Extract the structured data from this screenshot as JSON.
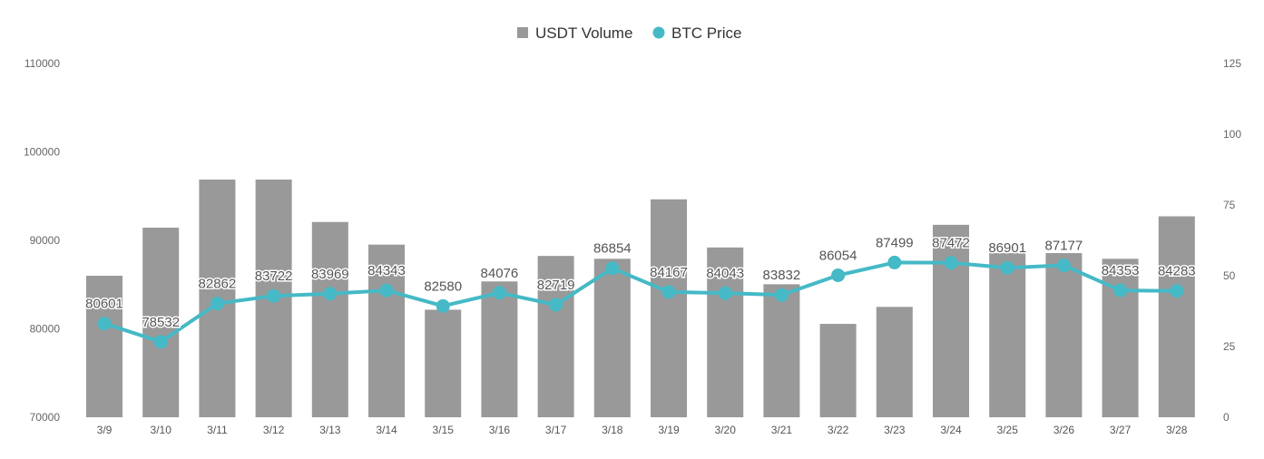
{
  "chart_data": {
    "type": "bar+line",
    "categories": [
      "3/9",
      "3/10",
      "3/11",
      "3/12",
      "3/13",
      "3/14",
      "3/15",
      "3/16",
      "3/17",
      "3/18",
      "3/19",
      "3/20",
      "3/21",
      "3/22",
      "3/23",
      "3/24",
      "3/25",
      "3/26",
      "3/27",
      "3/28"
    ],
    "series": [
      {
        "name": "USDT Volume",
        "type": "bar",
        "axis": "right",
        "color": "#999999",
        "values": [
          50,
          67,
          84,
          84,
          69,
          61,
          38,
          48,
          57,
          56,
          77,
          60,
          47,
          33,
          39,
          68,
          58,
          58,
          56,
          71
        ]
      },
      {
        "name": "BTC Price",
        "type": "line",
        "axis": "left",
        "color": "#45B9C6",
        "values": [
          80601,
          78532,
          82862,
          83722,
          83969,
          84343,
          82580,
          84076,
          82719,
          86854,
          84167,
          84043,
          83832,
          86054,
          87499,
          87472,
          86901,
          87177,
          84353,
          84283
        ],
        "labels": [
          "80601",
          "78532",
          "82862",
          "83722",
          "83969",
          "84343",
          "82580",
          "84076",
          "82719",
          "86854",
          "84167",
          "84043",
          "83832",
          "86054",
          "87499",
          "87472",
          "86901",
          "87177",
          "84353",
          "84283"
        ]
      }
    ],
    "left_axis": {
      "min": 70000,
      "max": 110000,
      "ticks": [
        "70000",
        "80000",
        "90000",
        "100000",
        "110000"
      ]
    },
    "right_axis": {
      "min": 0,
      "max": 125,
      "ticks": [
        "0",
        "25",
        "50",
        "75",
        "100",
        "125"
      ]
    },
    "legend": [
      {
        "label": "USDT Volume",
        "marker": "square",
        "color": "#999999"
      },
      {
        "label": "BTC Price",
        "marker": "circle",
        "color": "#45B9C6"
      }
    ],
    "legend_position": "top-center",
    "grid": false,
    "title": ""
  }
}
